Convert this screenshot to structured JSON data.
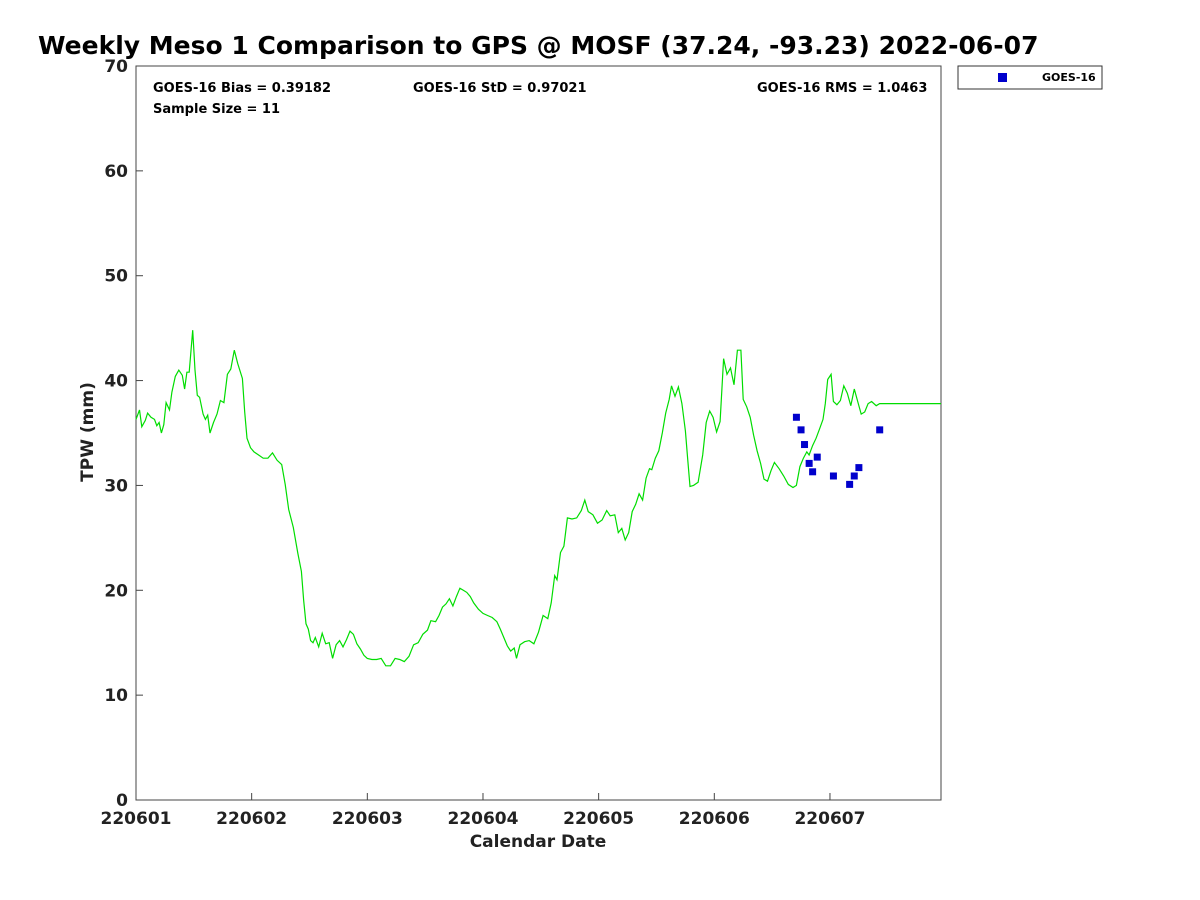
{
  "chart_data": {
    "type": "line",
    "title": "Weekly Meso 1 Comparison to GPS @ MOSF (37.24, -93.23) 2022-06-07",
    "xlabel": "Calendar Date",
    "ylabel": "TPW (mm)",
    "ylim": [
      0,
      70
    ],
    "yticks": [
      0,
      10,
      20,
      30,
      40,
      50,
      60,
      70
    ],
    "xlim": [
      0.0,
      6.96
    ],
    "xticks": [
      {
        "value": 0,
        "label": "220601"
      },
      {
        "value": 1,
        "label": "220602"
      },
      {
        "value": 2,
        "label": "220603"
      },
      {
        "value": 3,
        "label": "220604"
      },
      {
        "value": 4,
        "label": "220605"
      },
      {
        "value": 5,
        "label": "220606"
      },
      {
        "value": 6,
        "label": "220607"
      }
    ],
    "x_unit": "days after 2022-06-01 00:00 UTC",
    "grid": false,
    "stats": {
      "bias": "GOES-16 Bias = 0.39182",
      "std": "GOES-16 StD = 0.97021",
      "rms": "GOES-16 RMS = 1.0463",
      "sample": "Sample Size = 11"
    },
    "legend": {
      "position": "outside-top-right",
      "entries": [
        "GOES-16"
      ]
    },
    "gps_line": {
      "color": "#00dd00",
      "points": [
        [
          0.0,
          36.3
        ],
        [
          0.03,
          37.2
        ],
        [
          0.05,
          35.6
        ],
        [
          0.08,
          36.2
        ],
        [
          0.1,
          36.9
        ],
        [
          0.13,
          36.5
        ],
        [
          0.16,
          36.3
        ],
        [
          0.18,
          35.7
        ],
        [
          0.2,
          36.0
        ],
        [
          0.22,
          35.0
        ],
        [
          0.24,
          35.8
        ],
        [
          0.26,
          37.9
        ],
        [
          0.29,
          37.2
        ],
        [
          0.31,
          38.9
        ],
        [
          0.34,
          40.4
        ],
        [
          0.37,
          41.0
        ],
        [
          0.4,
          40.5
        ],
        [
          0.42,
          39.2
        ],
        [
          0.44,
          40.8
        ],
        [
          0.46,
          40.8
        ],
        [
          0.49,
          44.8
        ],
        [
          0.51,
          41.0
        ],
        [
          0.53,
          38.6
        ],
        [
          0.55,
          38.4
        ],
        [
          0.58,
          36.8
        ],
        [
          0.6,
          36.3
        ],
        [
          0.62,
          36.7
        ],
        [
          0.64,
          35.0
        ],
        [
          0.67,
          36.0
        ],
        [
          0.7,
          36.8
        ],
        [
          0.73,
          38.1
        ],
        [
          0.76,
          37.9
        ],
        [
          0.79,
          40.6
        ],
        [
          0.82,
          41.1
        ],
        [
          0.85,
          42.9
        ],
        [
          0.88,
          41.6
        ],
        [
          0.92,
          40.2
        ],
        [
          0.94,
          37.0
        ],
        [
          0.96,
          34.5
        ],
        [
          0.99,
          33.6
        ],
        [
          1.02,
          33.2
        ],
        [
          1.06,
          32.9
        ],
        [
          1.1,
          32.6
        ],
        [
          1.14,
          32.6
        ],
        [
          1.18,
          33.1
        ],
        [
          1.22,
          32.4
        ],
        [
          1.26,
          32.0
        ],
        [
          1.29,
          30.1
        ],
        [
          1.32,
          27.7
        ],
        [
          1.36,
          26.0
        ],
        [
          1.4,
          23.5
        ],
        [
          1.43,
          21.8
        ],
        [
          1.45,
          19.0
        ],
        [
          1.47,
          16.8
        ],
        [
          1.49,
          16.3
        ],
        [
          1.51,
          15.2
        ],
        [
          1.53,
          15.0
        ],
        [
          1.55,
          15.5
        ],
        [
          1.58,
          14.6
        ],
        [
          1.61,
          15.9
        ],
        [
          1.64,
          14.9
        ],
        [
          1.67,
          15.0
        ],
        [
          1.7,
          13.5
        ],
        [
          1.73,
          14.8
        ],
        [
          1.76,
          15.2
        ],
        [
          1.79,
          14.6
        ],
        [
          1.82,
          15.3
        ],
        [
          1.85,
          16.1
        ],
        [
          1.88,
          15.8
        ],
        [
          1.91,
          14.9
        ],
        [
          1.94,
          14.4
        ],
        [
          1.97,
          13.8
        ],
        [
          2.0,
          13.5
        ],
        [
          2.04,
          13.4
        ],
        [
          2.08,
          13.4
        ],
        [
          2.12,
          13.5
        ],
        [
          2.16,
          12.8
        ],
        [
          2.2,
          12.8
        ],
        [
          2.24,
          13.5
        ],
        [
          2.28,
          13.4
        ],
        [
          2.32,
          13.2
        ],
        [
          2.36,
          13.7
        ],
        [
          2.4,
          14.8
        ],
        [
          2.44,
          15.0
        ],
        [
          2.48,
          15.8
        ],
        [
          2.52,
          16.2
        ],
        [
          2.55,
          17.1
        ],
        [
          2.59,
          17.0
        ],
        [
          2.62,
          17.6
        ],
        [
          2.65,
          18.4
        ],
        [
          2.68,
          18.7
        ],
        [
          2.71,
          19.2
        ],
        [
          2.74,
          18.5
        ],
        [
          2.77,
          19.4
        ],
        [
          2.8,
          20.2
        ],
        [
          2.83,
          20.0
        ],
        [
          2.86,
          19.8
        ],
        [
          2.89,
          19.4
        ],
        [
          2.92,
          18.8
        ],
        [
          2.96,
          18.2
        ],
        [
          3.0,
          17.8
        ],
        [
          3.04,
          17.6
        ],
        [
          3.08,
          17.4
        ],
        [
          3.12,
          17.0
        ],
        [
          3.15,
          16.3
        ],
        [
          3.18,
          15.5
        ],
        [
          3.21,
          14.7
        ],
        [
          3.24,
          14.2
        ],
        [
          3.27,
          14.5
        ],
        [
          3.29,
          13.5
        ],
        [
          3.32,
          14.8
        ],
        [
          3.36,
          15.1
        ],
        [
          3.4,
          15.2
        ],
        [
          3.44,
          14.9
        ],
        [
          3.48,
          16.0
        ],
        [
          3.52,
          17.6
        ],
        [
          3.56,
          17.3
        ],
        [
          3.59,
          18.8
        ],
        [
          3.62,
          21.4
        ],
        [
          3.64,
          21.0
        ],
        [
          3.67,
          23.6
        ],
        [
          3.7,
          24.2
        ],
        [
          3.73,
          26.9
        ],
        [
          3.77,
          26.8
        ],
        [
          3.81,
          26.9
        ],
        [
          3.85,
          27.6
        ],
        [
          3.88,
          28.6
        ],
        [
          3.91,
          27.5
        ],
        [
          3.95,
          27.2
        ],
        [
          3.99,
          26.4
        ],
        [
          4.03,
          26.7
        ],
        [
          4.07,
          27.6
        ],
        [
          4.1,
          27.1
        ],
        [
          4.14,
          27.2
        ],
        [
          4.17,
          25.5
        ],
        [
          4.2,
          25.9
        ],
        [
          4.23,
          24.8
        ],
        [
          4.26,
          25.5
        ],
        [
          4.29,
          27.5
        ],
        [
          4.32,
          28.2
        ],
        [
          4.35,
          29.2
        ],
        [
          4.38,
          28.6
        ],
        [
          4.41,
          30.7
        ],
        [
          4.44,
          31.6
        ],
        [
          4.46,
          31.5
        ],
        [
          4.49,
          32.6
        ],
        [
          4.52,
          33.3
        ],
        [
          4.55,
          35.0
        ],
        [
          4.58,
          36.9
        ],
        [
          4.61,
          38.2
        ],
        [
          4.63,
          39.5
        ],
        [
          4.66,
          38.5
        ],
        [
          4.69,
          39.4
        ],
        [
          4.72,
          37.8
        ],
        [
          4.75,
          35.2
        ],
        [
          4.77,
          32.5
        ],
        [
          4.79,
          29.9
        ],
        [
          4.82,
          30.0
        ],
        [
          4.86,
          30.3
        ],
        [
          4.9,
          32.9
        ],
        [
          4.93,
          36.0
        ],
        [
          4.96,
          37.1
        ],
        [
          4.99,
          36.5
        ],
        [
          5.02,
          35.1
        ],
        [
          5.05,
          36.1
        ],
        [
          5.08,
          42.1
        ],
        [
          5.11,
          40.6
        ],
        [
          5.14,
          41.2
        ],
        [
          5.17,
          39.6
        ],
        [
          5.2,
          42.9
        ],
        [
          5.23,
          42.9
        ],
        [
          5.25,
          38.2
        ],
        [
          5.28,
          37.5
        ],
        [
          5.31,
          36.5
        ],
        [
          5.34,
          34.8
        ],
        [
          5.37,
          33.3
        ],
        [
          5.4,
          32.1
        ],
        [
          5.43,
          30.6
        ],
        [
          5.46,
          30.4
        ],
        [
          5.49,
          31.4
        ],
        [
          5.52,
          32.2
        ],
        [
          5.56,
          31.6
        ],
        [
          5.6,
          30.9
        ],
        [
          5.64,
          30.1
        ],
        [
          5.68,
          29.8
        ],
        [
          5.71,
          30.0
        ],
        [
          5.74,
          31.8
        ],
        [
          5.77,
          32.6
        ],
        [
          5.8,
          33.2
        ],
        [
          5.82,
          32.9
        ],
        [
          5.85,
          33.8
        ],
        [
          5.88,
          34.5
        ],
        [
          5.91,
          35.4
        ],
        [
          5.94,
          36.3
        ],
        [
          5.96,
          37.8
        ],
        [
          5.98,
          40.1
        ],
        [
          6.01,
          40.6
        ],
        [
          6.03,
          38.0
        ],
        [
          6.06,
          37.7
        ],
        [
          6.09,
          38.1
        ],
        [
          6.12,
          39.5
        ],
        [
          6.15,
          38.8
        ],
        [
          6.18,
          37.6
        ],
        [
          6.21,
          39.2
        ],
        [
          6.24,
          38.0
        ],
        [
          6.27,
          36.8
        ],
        [
          6.3,
          37.0
        ],
        [
          6.33,
          37.8
        ],
        [
          6.36,
          38.0
        ],
        [
          6.4,
          37.6
        ],
        [
          6.43,
          37.8
        ],
        [
          6.96,
          37.8
        ]
      ]
    },
    "series": [
      {
        "name": "GOES-16",
        "color": "#0000cc",
        "marker": "square",
        "x": [
          5.71,
          5.75,
          5.78,
          5.82,
          5.85,
          5.89,
          6.03,
          6.17,
          6.21,
          6.25,
          6.43
        ],
        "y": [
          36.5,
          35.3,
          33.9,
          32.1,
          31.3,
          32.7,
          30.9,
          30.1,
          30.9,
          31.7,
          35.3
        ]
      }
    ]
  }
}
